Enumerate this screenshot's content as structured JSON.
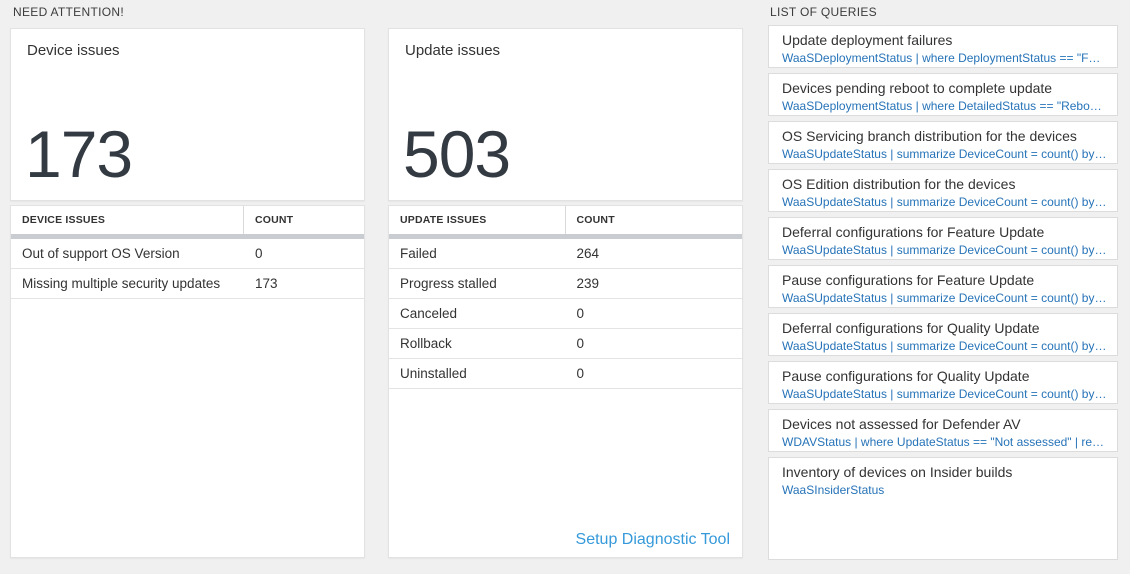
{
  "sections": {
    "need_attention": "NEED ATTENTION!",
    "list_of_queries": "LIST OF QUERIES"
  },
  "device_issues": {
    "title": "Device issues",
    "count": "173",
    "table": {
      "headers": [
        "DEVICE ISSUES",
        "COUNT"
      ],
      "rows": [
        {
          "label": "Out of support OS Version",
          "count": "0"
        },
        {
          "label": "Missing multiple security updates",
          "count": "173"
        }
      ]
    }
  },
  "update_issues": {
    "title": "Update issues",
    "count": "503",
    "table": {
      "headers": [
        "UPDATE ISSUES",
        "COUNT"
      ],
      "rows": [
        {
          "label": "Failed",
          "count": "264"
        },
        {
          "label": "Progress stalled",
          "count": "239"
        },
        {
          "label": "Canceled",
          "count": "0"
        },
        {
          "label": "Rollback",
          "count": "0"
        },
        {
          "label": "Uninstalled",
          "count": "0"
        }
      ]
    },
    "footer_link": "Setup Diagnostic Tool"
  },
  "queries": {
    "items": [
      {
        "title": "Update deployment failures",
        "query": "WaaSDeploymentStatus | where DeploymentStatus == \"Failed\" |..."
      },
      {
        "title": "Devices pending reboot to complete update",
        "query": "WaaSDeploymentStatus | where DetailedStatus == \"Reboot pend..."
      },
      {
        "title": "OS Servicing branch distribution for the devices",
        "query": "WaaSUpdateStatus | summarize DeviceCount = count() by OSSer..."
      },
      {
        "title": "OS Edition distribution for the devices",
        "query": "WaaSUpdateStatus | summarize DeviceCount = count() by OSEdit..."
      },
      {
        "title": "Deferral configurations for Feature Update",
        "query": "WaaSUpdateStatus | summarize DeviceCount = count() by Featur..."
      },
      {
        "title": "Pause configurations for Feature Update",
        "query": "WaaSUpdateStatus | summarize DeviceCount = count() by Featur..."
      },
      {
        "title": "Deferral configurations for Quality Update",
        "query": "WaaSUpdateStatus | summarize DeviceCount = count() by Qualit..."
      },
      {
        "title": "Pause configurations for Quality Update",
        "query": "WaaSUpdateStatus | summarize DeviceCount = count() by Qualit..."
      },
      {
        "title": "Devices not assessed for Defender AV",
        "query": "WDAVStatus | where UpdateStatus == \"Not assessed\" | render ta..."
      },
      {
        "title": "Inventory of devices on Insider builds",
        "query": "WaaSInsiderStatus"
      }
    ]
  },
  "colors": {
    "accent_link": "#3599da",
    "query_link": "#2673b8",
    "big_number": "#333a42",
    "thick_bar": "#c9cdd2"
  }
}
